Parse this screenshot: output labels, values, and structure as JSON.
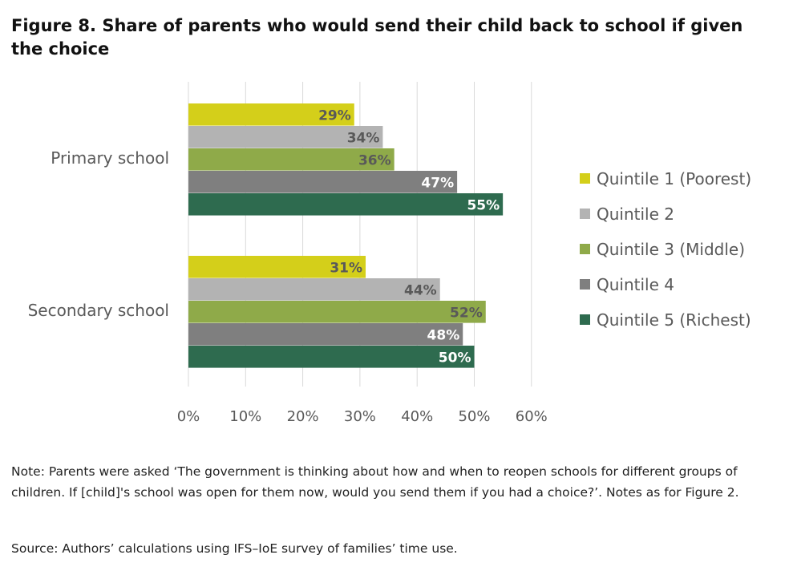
{
  "title": "Figure 8. Share of parents who would send their child back to school if given the choice",
  "note": "Note: Parents were asked ‘The government is thinking about how and when to reopen schools for different groups of children. If [child]'s school was open for them now, would you send them if you had a choice?’. Notes as for Figure 2.",
  "source": "Source: Authors’ calculations using IFS–IoE survey of families’ time use.",
  "chart_data": {
    "type": "bar",
    "orientation": "horizontal",
    "categories": [
      "Primary school",
      "Secondary school"
    ],
    "series": [
      {
        "name": "Quintile 1 (Poorest)",
        "color": "#d4cf1a",
        "values": [
          29,
          31
        ],
        "labels": [
          "29%",
          "31%"
        ]
      },
      {
        "name": "Quintile 2",
        "color": "#b3b3b3",
        "values": [
          34,
          44
        ],
        "labels": [
          "34%",
          "44%"
        ]
      },
      {
        "name": "Quintile 3 (Middle)",
        "color": "#8faa49",
        "values": [
          36,
          52
        ],
        "labels": [
          "36%",
          "52%"
        ]
      },
      {
        "name": "Quintile 4",
        "color": "#7f7f7f",
        "values": [
          47,
          48
        ],
        "labels": [
          "47%",
          "48%"
        ]
      },
      {
        "name": "Quintile 5 (Richest)",
        "color": "#2e6b4f",
        "values": [
          55,
          50
        ],
        "labels": [
          "55%",
          "50%"
        ]
      }
    ],
    "x_ticks": [
      "0%",
      "10%",
      "20%",
      "30%",
      "40%",
      "50%",
      "60%"
    ],
    "xlim": [
      0,
      60
    ],
    "grid": true,
    "legend": "right"
  }
}
